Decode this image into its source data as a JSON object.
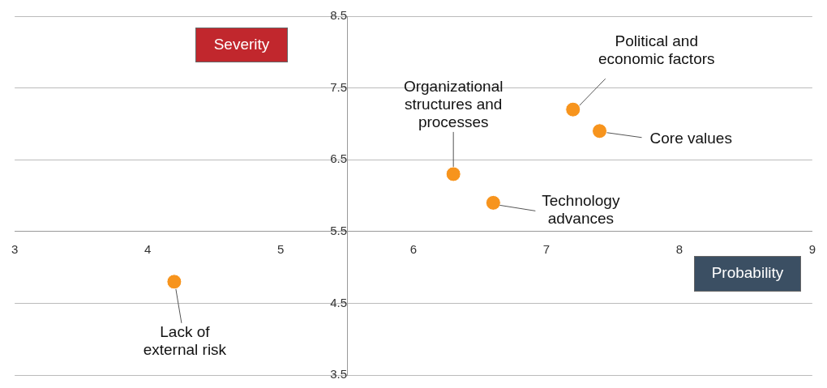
{
  "chart_data": {
    "type": "scatter",
    "x_label": "Probability",
    "y_label": "Severity",
    "xlim": [
      3,
      9
    ],
    "xticks": [
      3,
      4,
      5,
      6,
      7,
      8,
      9
    ],
    "ylim": [
      3.5,
      8.5
    ],
    "yticks": [
      3.5,
      4.5,
      5.5,
      6.5,
      7.5,
      8.5
    ],
    "origin": [
      5.5,
      5.5
    ],
    "grid": "y",
    "color": "#f7941d",
    "marker": "circle",
    "points": [
      {
        "label": [
          "Political and",
          "economic factors"
        ],
        "x": 7.2,
        "y": 7.2
      },
      {
        "label": [
          "Core values"
        ],
        "x": 7.4,
        "y": 6.9
      },
      {
        "label": [
          "Organizational",
          "structures and",
          "processes"
        ],
        "x": 6.3,
        "y": 6.3
      },
      {
        "label": [
          "Technology",
          "advances"
        ],
        "x": 6.6,
        "y": 5.9
      },
      {
        "label": [
          "Lack of",
          "external risk"
        ],
        "x": 4.2,
        "y": 4.8
      }
    ]
  }
}
